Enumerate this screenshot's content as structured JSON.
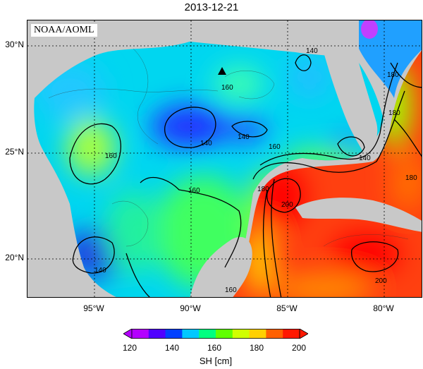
{
  "title": "2013-12-21",
  "credit": "NOAA/AOML",
  "lat_labels": [
    "30°N",
    "25°N",
    "20°N"
  ],
  "lon_labels": [
    "95°W",
    "90°W",
    "85°W",
    "80°W"
  ],
  "contour_labels": [
    "140",
    "160",
    "160",
    "140",
    "160",
    "180",
    "140",
    "180",
    "160",
    "180",
    "200",
    "140",
    "200",
    "180",
    "160",
    "140"
  ],
  "colorbar": {
    "ticks": [
      "120",
      "140",
      "160",
      "180",
      "200"
    ],
    "unit": "SH [cm]",
    "colors": [
      "#b400ff",
      "#5000ff",
      "#0040ff",
      "#00c8ff",
      "#00ff80",
      "#60ff00",
      "#d0ff00",
      "#ffd000",
      "#ff6000",
      "#ff1800"
    ]
  },
  "colors": {
    "land": "#c8c8c8",
    "marker": "#000000"
  }
}
